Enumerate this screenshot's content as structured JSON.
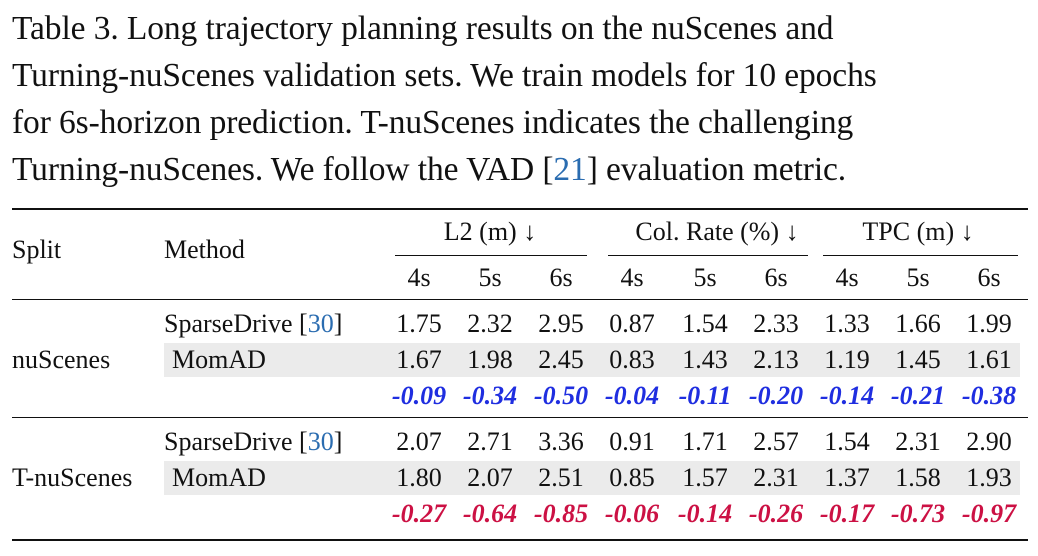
{
  "caption": {
    "lines": [
      [
        "Table 3.  Long trajectory planning results on the nuScenes and",
        "",
        ""
      ],
      [
        "Turning-nuScenes validation sets. We train models for 10 epochs",
        "",
        ""
      ],
      [
        "for 6s-horizon prediction.  T-nuScenes indicates the challenging",
        "",
        ""
      ],
      [
        "Turning-nuScenes. We follow the VAD [",
        "21",
        "] evaluation metric."
      ]
    ]
  },
  "table": {
    "headers": {
      "split": "Split",
      "method": "Method",
      "groups": [
        "L2 (m) ↓",
        "Col. Rate (%) ↓",
        "TPC (m) ↓"
      ],
      "horizons": [
        "4s",
        "5s",
        "6s",
        "4s",
        "5s",
        "6s",
        "4s",
        "5s",
        "6s"
      ]
    },
    "sections": [
      {
        "split": "nuScenes",
        "rows": [
          {
            "method": "SparseDrive [",
            "cite": "30",
            "close": "]",
            "values": [
              "1.75",
              "2.32",
              "2.95",
              "0.87",
              "1.54",
              "2.33",
              "1.33",
              "1.66",
              "1.99"
            ],
            "shaded": false
          },
          {
            "method": "MomAD",
            "cite": "",
            "close": "",
            "values": [
              "1.67",
              "1.98",
              "2.45",
              "0.83",
              "1.43",
              "2.13",
              "1.19",
              "1.45",
              "1.61"
            ],
            "shaded": true
          }
        ],
        "delta": [
          "-0.09",
          "-0.34",
          "-0.50",
          "-0.04",
          "-0.11",
          "-0.20",
          "-0.14",
          "-0.21",
          "-0.38"
        ],
        "delta_color": "#1f2ee0"
      },
      {
        "split": "T-nuScenes",
        "rows": [
          {
            "method": "SparseDrive [",
            "cite": "30",
            "close": "]",
            "values": [
              "2.07",
              "2.71",
              "3.36",
              "0.91",
              "1.71",
              "2.57",
              "1.54",
              "2.31",
              "2.90"
            ],
            "shaded": false
          },
          {
            "method": "MomAD",
            "cite": "",
            "close": "",
            "values": [
              "1.80",
              "2.07",
              "2.51",
              "0.85",
              "1.57",
              "2.31",
              "1.37",
              "1.58",
              "1.93"
            ],
            "shaded": true
          }
        ],
        "delta": [
          "-0.27",
          "-0.64",
          "-0.85",
          "-0.06",
          "-0.14",
          "-0.26",
          "-0.17",
          "-0.73",
          "-0.97"
        ],
        "delta_color": "#cc1144"
      }
    ],
    "citation_color": "#2a6cb0"
  }
}
